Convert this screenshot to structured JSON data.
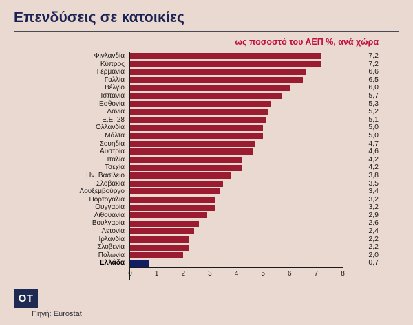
{
  "page": {
    "title": "Επενδύσεις σε κατοικίες",
    "subtitle": "ως ποσοστό του ΑΕΠ %, ανά χώρα",
    "source": "Πηγή: Eurostat",
    "logo": "OT"
  },
  "colors": {
    "background": "#ead9d1",
    "bar": "#9b1b31",
    "highlight_bar": "#101d63",
    "title": "#1a2353",
    "subtitle": "#c00f3c",
    "axis": "#1a1a1a"
  },
  "chart_data": {
    "type": "bar",
    "orientation": "horizontal",
    "title": "Επενδύσεις σε κατοικίες",
    "subtitle": "ως ποσοστό του ΑΕΠ %, ανά χώρα",
    "xlabel": "",
    "ylabel": "",
    "xlim": [
      0,
      8
    ],
    "xticks": [
      0,
      1,
      2,
      3,
      4,
      5,
      6,
      7,
      8
    ],
    "xtick_labels": [
      "0",
      "1",
      "2",
      "3",
      "4",
      "5",
      "6",
      "7",
      "8"
    ],
    "grid": false,
    "legend": false,
    "highlight_category": "Ελλάδα",
    "categories": [
      "Φινλανδία",
      "Κύπρος",
      "Γερμανία",
      "Γαλλία",
      "Βέλγιο",
      "Ισπανία",
      "Εσθονία",
      "Δανία",
      "Ε.Ε. 28",
      "Ολλανδία",
      "Μάλτα",
      "Σουηδία",
      "Αυστρία",
      "Ιταλία",
      "Τσεχία",
      "Ην. Βασίλειο",
      "Σλοβακία",
      "Λουξεμβούργο",
      "Πορτογαλία",
      "Ουγγαρία",
      "Λιθουανία",
      "Βουλγαρία",
      "Λετονία",
      "Ιρλανδία",
      "Σλοβενία",
      "Πολωνία",
      "Ελλάδα"
    ],
    "values": [
      7.2,
      7.2,
      6.6,
      6.5,
      6.0,
      5.7,
      5.3,
      5.2,
      5.1,
      5.0,
      5.0,
      4.7,
      4.6,
      4.2,
      4.2,
      3.8,
      3.5,
      3.4,
      3.2,
      3.2,
      2.9,
      2.6,
      2.4,
      2.2,
      2.2,
      2.0,
      0.7
    ],
    "value_labels": [
      "7,2",
      "7,2",
      "6,6",
      "6,5",
      "6,0",
      "5,7",
      "5,3",
      "5,2",
      "5,1",
      "5,0",
      "5,0",
      "4,7",
      "4,6",
      "4,2",
      "4,2",
      "3,8",
      "3,5",
      "3,4",
      "3,2",
      "3,2",
      "2,9",
      "2,6",
      "2,4",
      "2,2",
      "2,2",
      "2,0",
      "0,7"
    ]
  }
}
